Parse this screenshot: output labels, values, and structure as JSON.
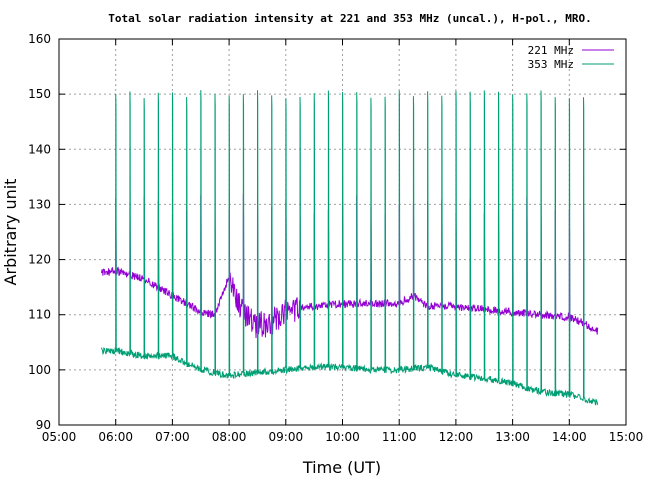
{
  "chart_data": {
    "type": "line",
    "title": "Total solar radiation intensity at 221 and 353 MHz (uncal.), H-pol., MRO.",
    "xlabel": "Time (UT)",
    "ylabel": "Arbitrary unit",
    "xlim": [
      "05:00",
      "15:00"
    ],
    "ylim": [
      90,
      160
    ],
    "x_ticks": [
      "05:00",
      "06:00",
      "07:00",
      "08:00",
      "09:00",
      "10:00",
      "11:00",
      "12:00",
      "13:00",
      "14:00",
      "15:00"
    ],
    "y_ticks": [
      "90",
      "100",
      "110",
      "120",
      "130",
      "140",
      "150",
      "160"
    ],
    "grid": true,
    "legend_position": "top-right",
    "series": [
      {
        "name": "221 MHz",
        "color": "#9400d3",
        "data_start": "05:45",
        "data_end": "14:30",
        "baseline": [
          [
            "05:45",
            117.5
          ],
          [
            "06:00",
            118
          ],
          [
            "06:30",
            116.5
          ],
          [
            "07:00",
            113.5
          ],
          [
            "07:30",
            110.5
          ],
          [
            "07:45",
            110
          ],
          [
            "08:00",
            117
          ],
          [
            "08:15",
            110
          ],
          [
            "08:30",
            108
          ],
          [
            "08:45",
            108.5
          ],
          [
            "09:00",
            111
          ],
          [
            "09:30",
            111.5
          ],
          [
            "10:00",
            112
          ],
          [
            "10:30",
            112
          ],
          [
            "11:00",
            112
          ],
          [
            "11:15",
            113.5
          ],
          [
            "11:30",
            111.5
          ],
          [
            "12:00",
            111.5
          ],
          [
            "12:30",
            111
          ],
          [
            "13:00",
            110.5
          ],
          [
            "13:30",
            110
          ],
          [
            "14:00",
            109.5
          ],
          [
            "14:15",
            108.5
          ],
          [
            "14:30",
            107
          ]
        ],
        "calibration_pulse_level": 130
      },
      {
        "name": "353 MHz",
        "color": "#009e73",
        "data_start": "05:45",
        "data_end": "14:30",
        "baseline": [
          [
            "05:45",
            103.5
          ],
          [
            "06:00",
            103.5
          ],
          [
            "06:30",
            102.5
          ],
          [
            "07:00",
            102.5
          ],
          [
            "07:30",
            100
          ],
          [
            "08:00",
            99
          ],
          [
            "08:30",
            99.5
          ],
          [
            "09:00",
            100
          ],
          [
            "09:30",
            100.5
          ],
          [
            "10:00",
            100.5
          ],
          [
            "10:30",
            100
          ],
          [
            "11:00",
            100
          ],
          [
            "11:30",
            100.5
          ],
          [
            "12:00",
            99
          ],
          [
            "12:30",
            98.5
          ],
          [
            "13:00",
            97.5
          ],
          [
            "13:30",
            96
          ],
          [
            "14:00",
            95.5
          ],
          [
            "14:30",
            94
          ]
        ],
        "calibration_pulse_level": 150
      }
    ],
    "calibration_pulse_interval_minutes": 15
  }
}
